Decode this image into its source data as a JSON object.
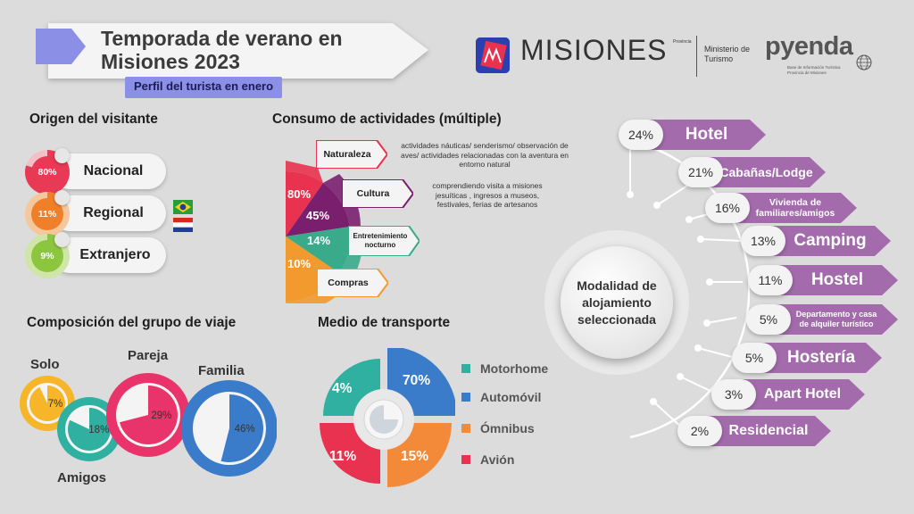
{
  "header": {
    "title": "Temporada de verano en Misiones 2023",
    "subtitle": "Perfil del turista en enero"
  },
  "logos": {
    "misiones": "MISIONES",
    "misiones_tag": "Provincia",
    "ministerio": "Ministerio de Turismo",
    "pyenda": "pyenda",
    "pyenda_sub": "Base de Información Turística Provincia de Misiones"
  },
  "origen": {
    "heading": "Origen del visitante",
    "items": [
      {
        "pct": "80%",
        "label": "Nacional",
        "color": "#e83a55"
      },
      {
        "pct": "11%",
        "label": "Regional",
        "color": "#f07f2a"
      },
      {
        "pct": "9%",
        "label": "Extranjero",
        "color": "#8cc63f"
      }
    ]
  },
  "consumo": {
    "heading": "Consumo de actividades (múltiple)",
    "items": [
      {
        "label": "Naturaleza",
        "pct": "80%",
        "color": "#e8324f",
        "desc": "actividades náuticas/ senderismo/ observación de aves/ actividades relacionadas con la aventura en entorno natural"
      },
      {
        "label": "Cultura",
        "pct": "45%",
        "color": "#7a1f6e",
        "desc": "comprendiendo visita a misiones jesuíticas , ingresos a museos, festivales, ferias de artesanos"
      },
      {
        "label": "Entretenimiento nocturno",
        "pct": "14%",
        "color": "#3aab8a",
        "desc": ""
      },
      {
        "label": "Compras",
        "pct": "10%",
        "color": "#f29a2e",
        "desc": ""
      }
    ]
  },
  "grupo": {
    "heading": "Composición del grupo de viaje",
    "items": [
      {
        "label": "Solo",
        "pct": "7%",
        "value": 7,
        "color": "#f7b52a"
      },
      {
        "label": "Amigos",
        "pct": "18%",
        "value": 18,
        "color": "#2fb0a0"
      },
      {
        "label": "Pareja",
        "pct": "29%",
        "value": 29,
        "color": "#e8346a"
      },
      {
        "label": "Familia",
        "pct": "46%",
        "value": 46,
        "color": "#3a7cc9"
      }
    ]
  },
  "transporte": {
    "heading": "Medio de transporte",
    "items": [
      {
        "label": "Motorhome",
        "pct": "4%",
        "color": "#2fb0a0"
      },
      {
        "label": "Automóvil",
        "pct": "70%",
        "color": "#3a7cc9"
      },
      {
        "label": "Ómnibus",
        "pct": "15%",
        "color": "#f28a3a"
      },
      {
        "label": "Avión",
        "pct": "11%",
        "color": "#e8324f"
      }
    ]
  },
  "alojamiento": {
    "center": "Modalidad de alojamiento seleccionada",
    "color": "#a36bac",
    "items": [
      {
        "pct": "24%",
        "label": "Hotel"
      },
      {
        "pct": "21%",
        "label": "Cabañas/Lodge"
      },
      {
        "pct": "16%",
        "label": "Vivienda de familiares/amigos"
      },
      {
        "pct": "13%",
        "label": "Camping"
      },
      {
        "pct": "11%",
        "label": "Hostel"
      },
      {
        "pct": "5%",
        "label": "Departamento y casa de alquiler turístico"
      },
      {
        "pct": "5%",
        "label": "Hostería"
      },
      {
        "pct": "3%",
        "label": "Apart Hotel"
      },
      {
        "pct": "2%",
        "label": "Residencial"
      }
    ]
  }
}
